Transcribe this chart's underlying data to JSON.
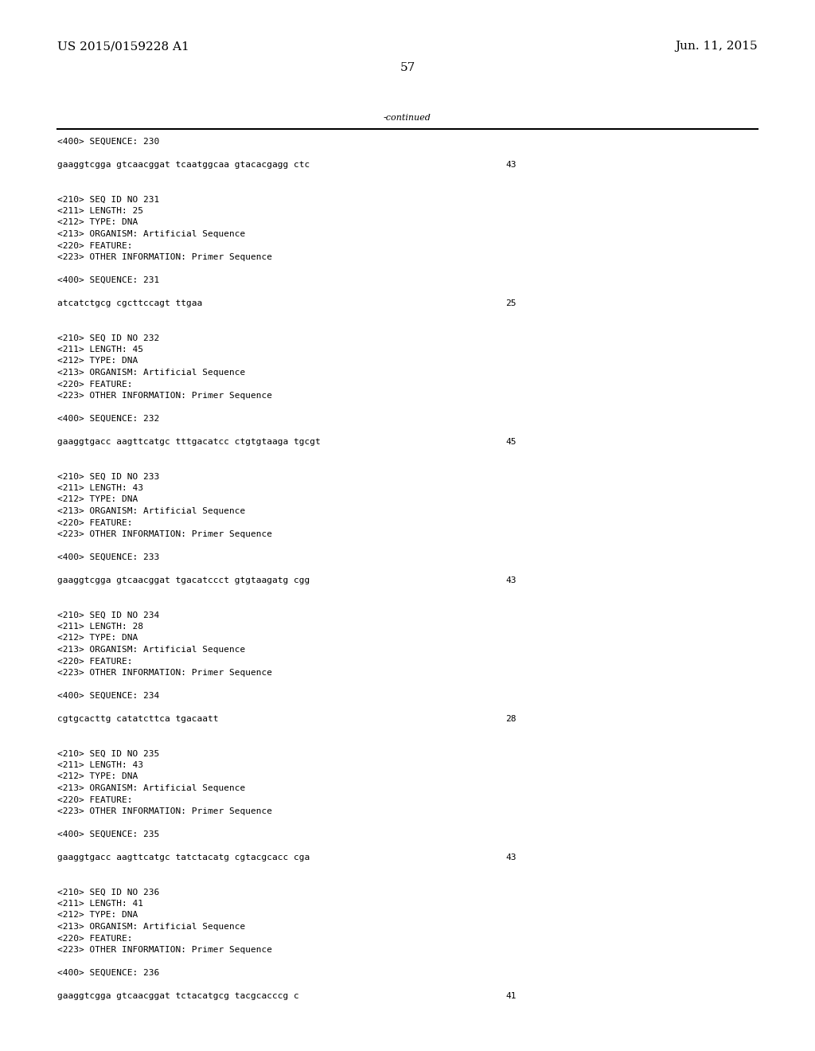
{
  "background_color": "#ffffff",
  "header_left": "US 2015/0159228 A1",
  "header_right": "Jun. 11, 2015",
  "page_number": "57",
  "continued_label": "-continued",
  "font_size_header": 11,
  "font_size_body": 8.0,
  "content_lines": [
    {
      "text": "<400> SEQUENCE: 230",
      "indent": false,
      "seq_num": null
    },
    {
      "text": "",
      "indent": false,
      "seq_num": null
    },
    {
      "text": "gaaggtcgga gtcaacggat tcaatggcaa gtacacgagg ctc",
      "indent": false,
      "seq_num": "43"
    },
    {
      "text": "",
      "indent": false,
      "seq_num": null
    },
    {
      "text": "",
      "indent": false,
      "seq_num": null
    },
    {
      "text": "<210> SEQ ID NO 231",
      "indent": false,
      "seq_num": null
    },
    {
      "text": "<211> LENGTH: 25",
      "indent": false,
      "seq_num": null
    },
    {
      "text": "<212> TYPE: DNA",
      "indent": false,
      "seq_num": null
    },
    {
      "text": "<213> ORGANISM: Artificial Sequence",
      "indent": false,
      "seq_num": null
    },
    {
      "text": "<220> FEATURE:",
      "indent": false,
      "seq_num": null
    },
    {
      "text": "<223> OTHER INFORMATION: Primer Sequence",
      "indent": false,
      "seq_num": null
    },
    {
      "text": "",
      "indent": false,
      "seq_num": null
    },
    {
      "text": "<400> SEQUENCE: 231",
      "indent": false,
      "seq_num": null
    },
    {
      "text": "",
      "indent": false,
      "seq_num": null
    },
    {
      "text": "atcatctgcg cgcttccagt ttgaa",
      "indent": false,
      "seq_num": "25"
    },
    {
      "text": "",
      "indent": false,
      "seq_num": null
    },
    {
      "text": "",
      "indent": false,
      "seq_num": null
    },
    {
      "text": "<210> SEQ ID NO 232",
      "indent": false,
      "seq_num": null
    },
    {
      "text": "<211> LENGTH: 45",
      "indent": false,
      "seq_num": null
    },
    {
      "text": "<212> TYPE: DNA",
      "indent": false,
      "seq_num": null
    },
    {
      "text": "<213> ORGANISM: Artificial Sequence",
      "indent": false,
      "seq_num": null
    },
    {
      "text": "<220> FEATURE:",
      "indent": false,
      "seq_num": null
    },
    {
      "text": "<223> OTHER INFORMATION: Primer Sequence",
      "indent": false,
      "seq_num": null
    },
    {
      "text": "",
      "indent": false,
      "seq_num": null
    },
    {
      "text": "<400> SEQUENCE: 232",
      "indent": false,
      "seq_num": null
    },
    {
      "text": "",
      "indent": false,
      "seq_num": null
    },
    {
      "text": "gaaggtgacc aagttcatgc tttgacatcc ctgtgtaaga tgcgt",
      "indent": false,
      "seq_num": "45"
    },
    {
      "text": "",
      "indent": false,
      "seq_num": null
    },
    {
      "text": "",
      "indent": false,
      "seq_num": null
    },
    {
      "text": "<210> SEQ ID NO 233",
      "indent": false,
      "seq_num": null
    },
    {
      "text": "<211> LENGTH: 43",
      "indent": false,
      "seq_num": null
    },
    {
      "text": "<212> TYPE: DNA",
      "indent": false,
      "seq_num": null
    },
    {
      "text": "<213> ORGANISM: Artificial Sequence",
      "indent": false,
      "seq_num": null
    },
    {
      "text": "<220> FEATURE:",
      "indent": false,
      "seq_num": null
    },
    {
      "text": "<223> OTHER INFORMATION: Primer Sequence",
      "indent": false,
      "seq_num": null
    },
    {
      "text": "",
      "indent": false,
      "seq_num": null
    },
    {
      "text": "<400> SEQUENCE: 233",
      "indent": false,
      "seq_num": null
    },
    {
      "text": "",
      "indent": false,
      "seq_num": null
    },
    {
      "text": "gaaggtcgga gtcaacggat tgacatccct gtgtaagatg cgg",
      "indent": false,
      "seq_num": "43"
    },
    {
      "text": "",
      "indent": false,
      "seq_num": null
    },
    {
      "text": "",
      "indent": false,
      "seq_num": null
    },
    {
      "text": "<210> SEQ ID NO 234",
      "indent": false,
      "seq_num": null
    },
    {
      "text": "<211> LENGTH: 28",
      "indent": false,
      "seq_num": null
    },
    {
      "text": "<212> TYPE: DNA",
      "indent": false,
      "seq_num": null
    },
    {
      "text": "<213> ORGANISM: Artificial Sequence",
      "indent": false,
      "seq_num": null
    },
    {
      "text": "<220> FEATURE:",
      "indent": false,
      "seq_num": null
    },
    {
      "text": "<223> OTHER INFORMATION: Primer Sequence",
      "indent": false,
      "seq_num": null
    },
    {
      "text": "",
      "indent": false,
      "seq_num": null
    },
    {
      "text": "<400> SEQUENCE: 234",
      "indent": false,
      "seq_num": null
    },
    {
      "text": "",
      "indent": false,
      "seq_num": null
    },
    {
      "text": "cgtgcacttg catatcttca tgacaatt",
      "indent": false,
      "seq_num": "28"
    },
    {
      "text": "",
      "indent": false,
      "seq_num": null
    },
    {
      "text": "",
      "indent": false,
      "seq_num": null
    },
    {
      "text": "<210> SEQ ID NO 235",
      "indent": false,
      "seq_num": null
    },
    {
      "text": "<211> LENGTH: 43",
      "indent": false,
      "seq_num": null
    },
    {
      "text": "<212> TYPE: DNA",
      "indent": false,
      "seq_num": null
    },
    {
      "text": "<213> ORGANISM: Artificial Sequence",
      "indent": false,
      "seq_num": null
    },
    {
      "text": "<220> FEATURE:",
      "indent": false,
      "seq_num": null
    },
    {
      "text": "<223> OTHER INFORMATION: Primer Sequence",
      "indent": false,
      "seq_num": null
    },
    {
      "text": "",
      "indent": false,
      "seq_num": null
    },
    {
      "text": "<400> SEQUENCE: 235",
      "indent": false,
      "seq_num": null
    },
    {
      "text": "",
      "indent": false,
      "seq_num": null
    },
    {
      "text": "gaaggtgacc aagttcatgc tatctacatg cgtacgcacc cga",
      "indent": false,
      "seq_num": "43"
    },
    {
      "text": "",
      "indent": false,
      "seq_num": null
    },
    {
      "text": "",
      "indent": false,
      "seq_num": null
    },
    {
      "text": "<210> SEQ ID NO 236",
      "indent": false,
      "seq_num": null
    },
    {
      "text": "<211> LENGTH: 41",
      "indent": false,
      "seq_num": null
    },
    {
      "text": "<212> TYPE: DNA",
      "indent": false,
      "seq_num": null
    },
    {
      "text": "<213> ORGANISM: Artificial Sequence",
      "indent": false,
      "seq_num": null
    },
    {
      "text": "<220> FEATURE:",
      "indent": false,
      "seq_num": null
    },
    {
      "text": "<223> OTHER INFORMATION: Primer Sequence",
      "indent": false,
      "seq_num": null
    },
    {
      "text": "",
      "indent": false,
      "seq_num": null
    },
    {
      "text": "<400> SEQUENCE: 236",
      "indent": false,
      "seq_num": null
    },
    {
      "text": "",
      "indent": false,
      "seq_num": null
    },
    {
      "text": "gaaggtcgga gtcaacggat tctacatgcg tacgcacccg c",
      "indent": false,
      "seq_num": "41"
    }
  ]
}
